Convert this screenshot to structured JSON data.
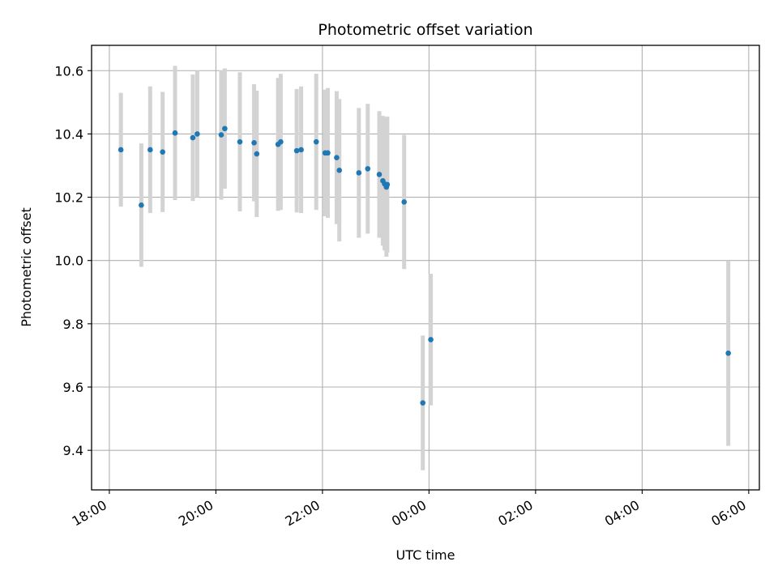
{
  "chart_data": {
    "type": "scatter",
    "title": "Photometric offset variation",
    "xlabel": "UTC time",
    "ylabel": "Photometric offset",
    "x_axis_type": "time",
    "xlim": [
      "2000-01-01T17:40:00",
      "2000-01-02T06:12:00"
    ],
    "ylim": [
      9.275,
      10.68
    ],
    "xticks": [
      {
        "t": "2000-01-01T18:00:00",
        "label": "18:00"
      },
      {
        "t": "2000-01-01T20:00:00",
        "label": "20:00"
      },
      {
        "t": "2000-01-01T22:00:00",
        "label": "22:00"
      },
      {
        "t": "2000-01-02T00:00:00",
        "label": "00:00"
      },
      {
        "t": "2000-01-02T02:00:00",
        "label": "02:00"
      },
      {
        "t": "2000-01-02T04:00:00",
        "label": "04:00"
      },
      {
        "t": "2000-01-02T06:00:00",
        "label": "06:00"
      }
    ],
    "yticks": [
      9.4,
      9.6,
      9.8,
      10.0,
      10.2,
      10.4,
      10.6
    ],
    "ytick_labels": [
      "9.4",
      "9.6",
      "9.8",
      "10.0",
      "10.2",
      "10.4",
      "10.6"
    ],
    "grid": true,
    "colors": {
      "marker": "#1f77b4",
      "errorbar": "#d3d3d3",
      "grid": "#b0b0b0"
    },
    "points": [
      {
        "t": "2000-01-01T18:13:00",
        "y": 10.35,
        "err": 0.18
      },
      {
        "t": "2000-01-01T18:36:00",
        "y": 10.175,
        "err": 0.195
      },
      {
        "t": "2000-01-01T18:46:00",
        "y": 10.35,
        "err": 0.2
      },
      {
        "t": "2000-01-01T19:00:00",
        "y": 10.343,
        "err": 0.19
      },
      {
        "t": "2000-01-01T19:14:00",
        "y": 10.403,
        "err": 0.212
      },
      {
        "t": "2000-01-01T19:34:00",
        "y": 10.388,
        "err": 0.2
      },
      {
        "t": "2000-01-01T19:39:00",
        "y": 10.4,
        "err": 0.2
      },
      {
        "t": "2000-01-01T20:06:00",
        "y": 10.397,
        "err": 0.205
      },
      {
        "t": "2000-01-01T20:10:00",
        "y": 10.417,
        "err": 0.19
      },
      {
        "t": "2000-01-01T20:27:00",
        "y": 10.375,
        "err": 0.22
      },
      {
        "t": "2000-01-01T20:43:00",
        "y": 10.372,
        "err": 0.185
      },
      {
        "t": "2000-01-01T20:46:00",
        "y": 10.337,
        "err": 0.2
      },
      {
        "t": "2000-01-01T21:10:00",
        "y": 10.367,
        "err": 0.21
      },
      {
        "t": "2000-01-01T21:13:00",
        "y": 10.375,
        "err": 0.215
      },
      {
        "t": "2000-01-01T21:31:00",
        "y": 10.347,
        "err": 0.195
      },
      {
        "t": "2000-01-01T21:36:00",
        "y": 10.35,
        "err": 0.2
      },
      {
        "t": "2000-01-01T21:53:00",
        "y": 10.375,
        "err": 0.215
      },
      {
        "t": "2000-01-01T22:03:00",
        "y": 10.34,
        "err": 0.2
      },
      {
        "t": "2000-01-01T22:06:00",
        "y": 10.34,
        "err": 0.205
      },
      {
        "t": "2000-01-01T22:16:00",
        "y": 10.325,
        "err": 0.21
      },
      {
        "t": "2000-01-01T22:19:00",
        "y": 10.285,
        "err": 0.225
      },
      {
        "t": "2000-01-01T22:41:00",
        "y": 10.277,
        "err": 0.205
      },
      {
        "t": "2000-01-01T22:51:00",
        "y": 10.29,
        "err": 0.205
      },
      {
        "t": "2000-01-01T23:04:00",
        "y": 10.272,
        "err": 0.2
      },
      {
        "t": "2000-01-01T23:08:00",
        "y": 10.252,
        "err": 0.205
      },
      {
        "t": "2000-01-01T23:10:00",
        "y": 10.242,
        "err": 0.21
      },
      {
        "t": "2000-01-01T23:12:00",
        "y": 10.232,
        "err": 0.22
      },
      {
        "t": "2000-01-01T23:13:00",
        "y": 10.24,
        "err": 0.215
      },
      {
        "t": "2000-01-01T23:32:00",
        "y": 10.185,
        "err": 0.212
      },
      {
        "t": "2000-01-01T23:53:00",
        "y": 9.55,
        "err": 0.213
      },
      {
        "t": "2000-01-02T00:02:00",
        "y": 9.75,
        "err": 0.208
      },
      {
        "t": "2000-01-02T05:37:00",
        "y": 9.707,
        "err": 0.293
      }
    ]
  }
}
